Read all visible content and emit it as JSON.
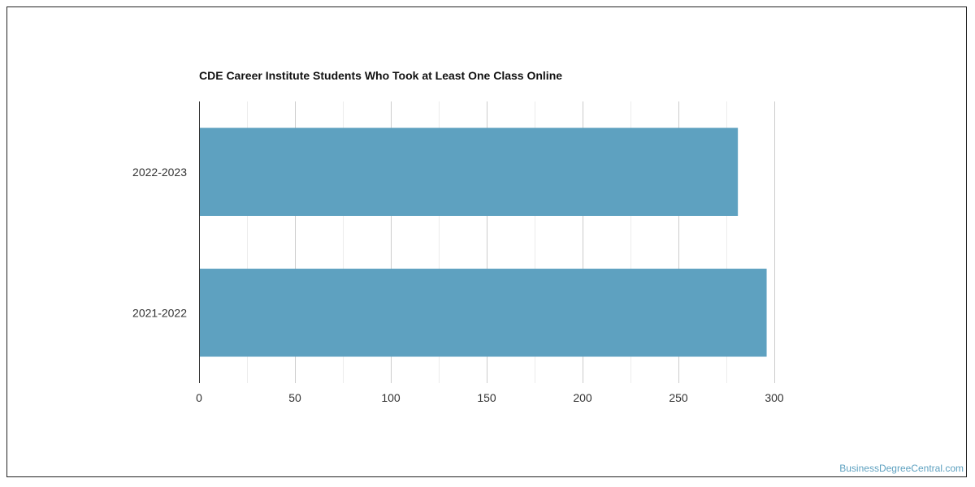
{
  "chart_data": {
    "type": "bar",
    "orientation": "horizontal",
    "title": "CDE Career Institute Students Who Took at Least One Class Online",
    "categories": [
      "2022-2023",
      "2021-2022"
    ],
    "values": [
      281,
      296
    ],
    "xlim": [
      0,
      300
    ],
    "xticks": [
      0,
      50,
      100,
      150,
      200,
      250,
      300
    ],
    "xlabel": "",
    "ylabel": "",
    "grid": true,
    "bar_color": "#5ea1c0"
  },
  "credit": "BusinessDegreeCentral.com"
}
